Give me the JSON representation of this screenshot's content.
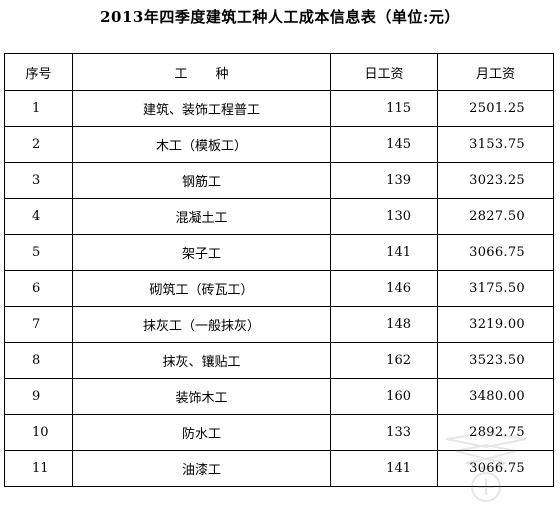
{
  "title": "2013年四季度建筑工种人工成本信息表（单位:元）",
  "headers": {
    "no": "序号",
    "name": "工种",
    "daily": "日工资",
    "monthly": "月工资"
  },
  "rows": [
    {
      "no": "1",
      "name": "建筑、装饰工程普工",
      "daily": "115",
      "monthly": "2501.25"
    },
    {
      "no": "2",
      "name": "木工（模板工）",
      "daily": "145",
      "monthly": "3153.75"
    },
    {
      "no": "3",
      "name": "钢筋工",
      "daily": "139",
      "monthly": "3023.25"
    },
    {
      "no": "4",
      "name": "混凝土工",
      "daily": "130",
      "monthly": "2827.50"
    },
    {
      "no": "5",
      "name": "架子工",
      "daily": "141",
      "monthly": "3066.75"
    },
    {
      "no": "6",
      "name": "砌筑工（砖瓦工）",
      "daily": "146",
      "monthly": "3175.50"
    },
    {
      "no": "7",
      "name": "抹灰工（一般抹灰）",
      "daily": "148",
      "monthly": "3219.00"
    },
    {
      "no": "8",
      "name": "抹灰、镶贴工",
      "daily": "162",
      "monthly": "3523.50"
    },
    {
      "no": "9",
      "name": "装饰木工",
      "daily": "160",
      "monthly": "3480.00"
    },
    {
      "no": "10",
      "name": "防水工",
      "daily": "133",
      "monthly": "2892.75"
    },
    {
      "no": "11",
      "name": "油漆工",
      "daily": "141",
      "monthly": "3066.75"
    }
  ]
}
